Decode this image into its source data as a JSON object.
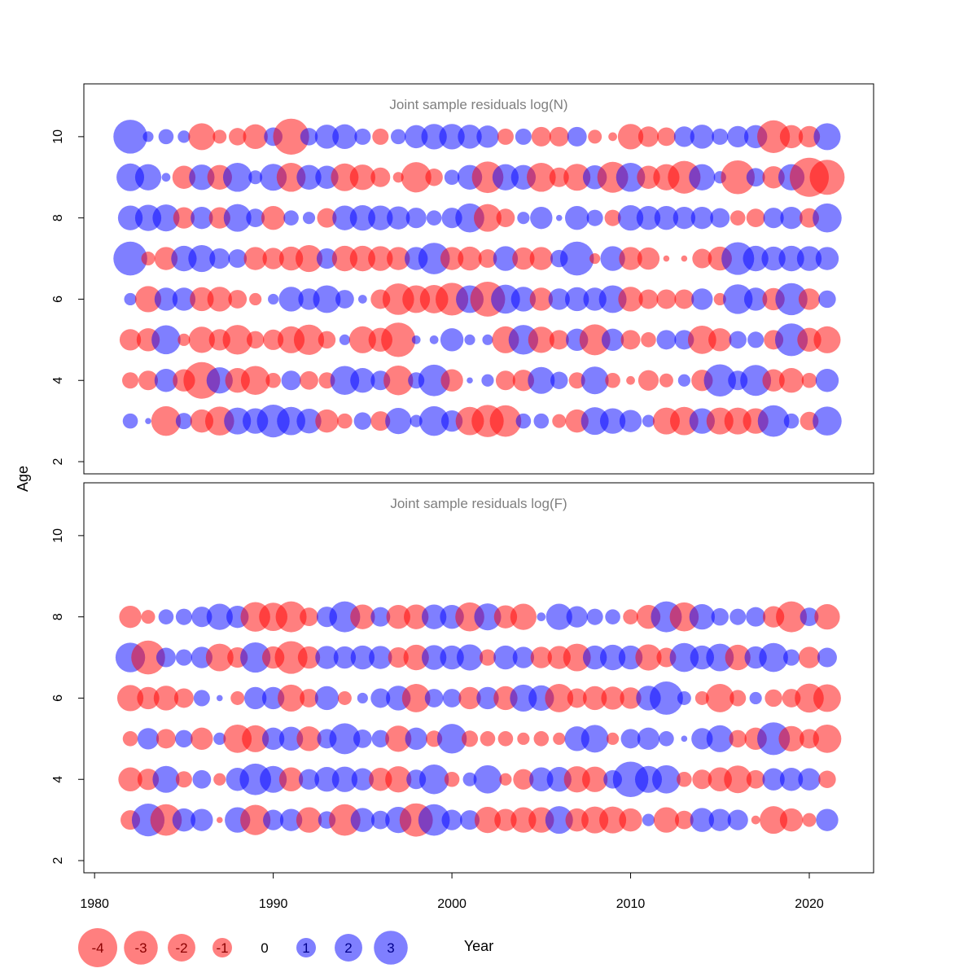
{
  "chart_data": {
    "type": "bubble",
    "ylabel": "Age",
    "xlabel": "Year",
    "xlim": [
      1979.4,
      2023.6
    ],
    "xticks": [
      1980,
      1990,
      2000,
      2010,
      2020
    ],
    "ylim": [
      1.7,
      11.3
    ],
    "yticks": [
      2,
      4,
      6,
      8,
      10
    ],
    "colors": {
      "negative": "#FF0000",
      "positive": "#0000FF",
      "opacity": 0.5
    },
    "legend": {
      "position": "bottom-left",
      "values": [
        -4,
        -3,
        -2,
        -1,
        0,
        1,
        2,
        3
      ],
      "labels": [
        "-4",
        "-3",
        "-2",
        "-1",
        "0",
        "1",
        "2",
        "3"
      ]
    },
    "years": [
      1982,
      1983,
      1984,
      1985,
      1986,
      1987,
      1988,
      1989,
      1990,
      1991,
      1992,
      1993,
      1994,
      1995,
      1996,
      1997,
      1998,
      1999,
      2000,
      2001,
      2002,
      2003,
      2004,
      2005,
      2006,
      2007,
      2008,
      2009,
      2010,
      2011,
      2012,
      2013,
      2014,
      2015,
      2016,
      2017,
      2018,
      2019,
      2020,
      2021
    ],
    "panels": [
      {
        "title": "Joint sample residuals log(N)",
        "ages": [
          3,
          4,
          5,
          6,
          7,
          8,
          9,
          10
        ],
        "residuals": {
          "10": [
            3.0,
            0.3,
            0.6,
            0.4,
            -1.9,
            -0.5,
            -0.8,
            -1.6,
            0.9,
            -3.4,
            0.8,
            1.5,
            1.6,
            0.7,
            -0.7,
            0.6,
            1.4,
            1.7,
            1.7,
            1.5,
            1.3,
            -0.7,
            0.7,
            -1.0,
            -1.0,
            1.0,
            -0.5,
            -0.2,
            -1.7,
            -1.1,
            -0.9,
            1.1,
            1.5,
            0.7,
            1.2,
            1.4,
            -2.8,
            -1.4,
            -1.2,
            1.9
          ],
          "9": [
            2.0,
            1.8,
            0.2,
            -1.4,
            1.7,
            -1.6,
            2.2,
            0.5,
            1.9,
            -2.2,
            1.6,
            1.4,
            -2.0,
            -1.7,
            -1.0,
            -0.3,
            -2.4,
            -0.8,
            0.6,
            1.6,
            -2.6,
            1.8,
            1.6,
            -2.2,
            -1.0,
            -1.9,
            1.5,
            -2.5,
            2.2,
            -1.4,
            -1.8,
            -2.8,
            1.8,
            0.4,
            -3.0,
            0.9,
            -1.3,
            1.8,
            -4.0,
            -3.2
          ],
          "8": [
            1.6,
            1.8,
            1.9,
            -1.2,
            1.3,
            -1.2,
            2.0,
            0.9,
            -1.5,
            0.6,
            0.4,
            -1.0,
            1.6,
            1.7,
            1.6,
            1.4,
            1.1,
            0.6,
            1.1,
            2.2,
            -2.0,
            -0.9,
            0.4,
            1.3,
            0.1,
            1.5,
            0.7,
            -0.7,
            1.7,
            1.5,
            1.5,
            1.3,
            1.3,
            1.0,
            -0.6,
            -0.9,
            1.1,
            1.3,
            -1.0,
            2.2
          ],
          "7": [
            3.0,
            -0.5,
            -1.4,
            1.7,
            1.9,
            1.1,
            0.9,
            -1.4,
            -1.2,
            -1.5,
            -1.9,
            1.1,
            -1.7,
            -1.7,
            -1.6,
            -1.4,
            1.4,
            2.6,
            -1.4,
            -1.5,
            -0.9,
            1.6,
            -1.3,
            -1.4,
            0.8,
            3.0,
            -0.3,
            1.6,
            -1.4,
            -1.3,
            -0.1,
            -0.1,
            -1.0,
            -1.5,
            2.8,
            1.7,
            1.5,
            1.7,
            1.6,
            1.4
          ],
          "6": [
            0.4,
            -1.8,
            1.4,
            1.4,
            -1.5,
            -1.6,
            -0.9,
            -0.4,
            0.3,
            1.6,
            1.2,
            2.0,
            0.9,
            0.2,
            -1.0,
            -2.6,
            -2.0,
            -2.1,
            -2.8,
            2.0,
            -3.2,
            2.2,
            1.6,
            -1.4,
            1.2,
            1.5,
            1.4,
            2.0,
            -1.6,
            -1.0,
            -1.0,
            -1.0,
            1.2,
            -0.4,
            2.3,
            1.4,
            -1.3,
            2.7,
            -1.2,
            0.8
          ],
          "5": [
            -1.2,
            -1.4,
            2.2,
            -0.4,
            -1.8,
            -1.2,
            -2.3,
            -0.8,
            -1.1,
            -1.9,
            -2.4,
            -0.8,
            0.3,
            -1.9,
            -1.5,
            -3.1,
            0.2,
            0.2,
            1.4,
            0.3,
            0.3,
            -1.9,
            2.3,
            -1.8,
            -1.0,
            1.3,
            -2.5,
            1.3,
            -1.0,
            -0.6,
            1.0,
            1.0,
            -2.1,
            -1.4,
            0.8,
            0.7,
            -1.0,
            2.8,
            -1.5,
            -1.9
          ],
          "4": [
            -0.7,
            -1.0,
            1.4,
            -1.3,
            -3.5,
            1.8,
            -1.6,
            -2.2,
            -0.6,
            1.0,
            -0.9,
            -0.7,
            2.2,
            1.6,
            1.0,
            -2.3,
            0.7,
            2.6,
            -1.3,
            0.1,
            0.4,
            -1.0,
            -1.2,
            1.9,
            0.8,
            -0.7,
            2.0,
            -0.6,
            -0.2,
            -1.1,
            -0.5,
            0.4,
            -1.2,
            2.7,
            1.0,
            2.5,
            -1.3,
            -1.6,
            -0.6,
            1.4
          ],
          "3": [
            0.6,
            0.1,
            -2.3,
            0.7,
            -1.4,
            -2.2,
            1.9,
            1.7,
            2.8,
            2.1,
            1.6,
            -1.4,
            -0.6,
            0.8,
            -1.0,
            1.8,
            0.4,
            2.3,
            1.2,
            -2.1,
            -2.7,
            -2.6,
            0.6,
            0.6,
            -0.5,
            -1.4,
            2.0,
            1.7,
            1.3,
            0.4,
            -1.9,
            -2.1,
            1.7,
            -1.9,
            -1.9,
            -1.7,
            2.6,
            0.6,
            -0.9,
            2.2
          ]
        }
      },
      {
        "title": "Joint sample residuals log(F)",
        "ages": [
          3,
          4,
          5,
          6,
          7,
          8
        ],
        "residuals": {
          "8": [
            -1.3,
            -0.5,
            0.6,
            0.7,
            1.1,
            1.8,
            1.3,
            -2.3,
            -2.1,
            -2.5,
            -0.9,
            1.1,
            2.5,
            -1.6,
            1.0,
            -1.5,
            -1.6,
            1.6,
            1.5,
            -2.2,
            1.9,
            -1.4,
            -1.8,
            0.2,
            1.8,
            1.2,
            0.7,
            0.6,
            -0.6,
            -1.5,
            2.5,
            -2.2,
            1.7,
            0.8,
            0.7,
            1.0,
            -1.2,
            -2.5,
            0.9,
            -1.7
          ],
          "7": [
            2.3,
            -3.0,
            1.0,
            0.7,
            1.2,
            -2.0,
            -1.1,
            2.4,
            -1.3,
            -2.8,
            -1.3,
            1.4,
            1.3,
            1.5,
            1.4,
            -1.1,
            -1.7,
            1.6,
            1.5,
            1.8,
            -0.7,
            1.5,
            1.2,
            -1.2,
            -1.4,
            -2.0,
            1.5,
            1.7,
            1.5,
            -1.8,
            -1.0,
            2.2,
            1.5,
            2.0,
            -1.7,
            1.3,
            2.2,
            0.7,
            -1.2,
            1.0
          ],
          "6": [
            -1.8,
            -1.3,
            -1.6,
            -1.0,
            0.7,
            0.1,
            -0.5,
            1.3,
            1.3,
            -1.9,
            -0.9,
            1.5,
            -0.5,
            0.3,
            1.0,
            1.6,
            -2.1,
            0.9,
            0.9,
            -1.3,
            1.3,
            -1.5,
            1.9,
            1.7,
            -2.1,
            -1.0,
            -1.5,
            -1.4,
            -1.2,
            1.6,
            2.9,
            0.5,
            -0.5,
            -2.1,
            -0.7,
            0.4,
            -0.8,
            -0.9,
            -2.2,
            -2.0
          ],
          "5": [
            -0.6,
            1.2,
            -1.0,
            0.8,
            -1.3,
            0.4,
            -2.1,
            -1.9,
            1.3,
            1.5,
            -1.6,
            1.0,
            2.5,
            0.9,
            0.8,
            -1.8,
            1.3,
            -0.7,
            2.3,
            -0.7,
            -0.6,
            -0.6,
            -0.4,
            -0.6,
            -0.4,
            1.6,
            2.0,
            -0.4,
            1.0,
            1.3,
            0.6,
            0.1,
            1.2,
            1.9,
            -0.8,
            -1.3,
            2.8,
            -1.7,
            -1.0,
            -2.1
          ],
          "4": [
            -1.5,
            -1.2,
            1.9,
            -0.7,
            0.9,
            -0.4,
            1.4,
            2.6,
            1.9,
            -1.5,
            1.1,
            1.6,
            1.7,
            1.3,
            -1.4,
            -1.8,
            1.0,
            2.3,
            -0.6,
            0.5,
            2.1,
            -0.4,
            -1.1,
            1.5,
            1.6,
            -1.8,
            -1.7,
            0.9,
            3.3,
            1.9,
            2.1,
            -0.6,
            -1.0,
            -1.5,
            -2.0,
            -0.9,
            1.3,
            1.4,
            1.3,
            -0.8
          ],
          "3": [
            -1.0,
            2.8,
            -2.6,
            1.4,
            1.3,
            -0.1,
            1.7,
            -2.4,
            1.1,
            1.3,
            -1.7,
            0.8,
            -2.6,
            1.5,
            0.9,
            1.8,
            -2.9,
            2.6,
            1.1,
            1.0,
            -1.8,
            -1.3,
            -1.7,
            -1.7,
            2.0,
            -1.4,
            -1.9,
            -1.9,
            -1.4,
            0.4,
            -1.7,
            -0.9,
            1.5,
            1.3,
            1.1,
            -0.2,
            -2.0,
            -1.4,
            -0.5,
            1.3
          ]
        }
      }
    ]
  }
}
